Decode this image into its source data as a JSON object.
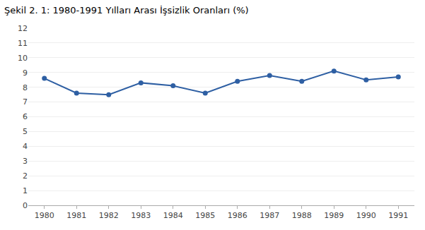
{
  "chart_data": {
    "type": "line",
    "title": "Şekil 2. 1: 1980-1991 Yılları Arası İşsizlik Oranları (%)",
    "x": [
      1980,
      1981,
      1982,
      1983,
      1984,
      1985,
      1986,
      1987,
      1988,
      1989,
      1990,
      1991
    ],
    "values": [
      8.6,
      7.6,
      7.5,
      8.3,
      8.1,
      7.6,
      8.4,
      8.8,
      8.4,
      9.1,
      8.5,
      8.7
    ],
    "color": "#2E5FA3",
    "marker": "circle",
    "xlim": [
      1979.5,
      1991.5
    ],
    "xticks": [
      1980,
      1981,
      1982,
      1983,
      1984,
      1985,
      1986,
      1987,
      1988,
      1989,
      1990,
      1991
    ],
    "ylim": [
      0,
      12
    ],
    "yticks": [
      0,
      1,
      2,
      3,
      4,
      5,
      6,
      7,
      8,
      9,
      10,
      11,
      12
    ],
    "grid": true
  }
}
